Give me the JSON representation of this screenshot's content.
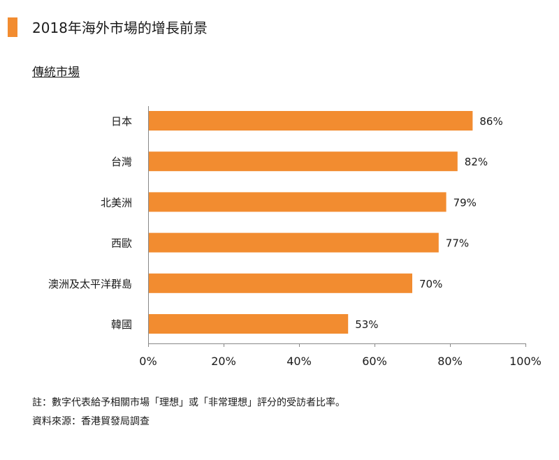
{
  "header": {
    "title": "2018年海外市場的增長前景",
    "accent_color": "#f28c30"
  },
  "chart_data": {
    "type": "bar",
    "orientation": "horizontal",
    "title": "傳統市場",
    "categories": [
      "日本",
      "台灣",
      "北美洲",
      "西歐",
      "澳洲及太平洋群島",
      "韓國"
    ],
    "values": [
      86,
      82,
      79,
      77,
      70,
      53
    ],
    "value_labels": [
      "86%",
      "82%",
      "79%",
      "77%",
      "70%",
      "53%"
    ],
    "xlim": [
      0,
      100
    ],
    "x_ticks": [
      0,
      20,
      40,
      60,
      80,
      100
    ],
    "x_tick_labels": [
      "0%",
      "20%",
      "40%",
      "60%",
      "80%",
      "100%"
    ],
    "bar_color": "#f28c30",
    "grid": false,
    "legend": "none"
  },
  "footer": {
    "note": "註：數字代表給予相關市場「理想」或「非常理想」評分的受訪者比率。",
    "source": "資料來源：香港貿發局調查"
  }
}
